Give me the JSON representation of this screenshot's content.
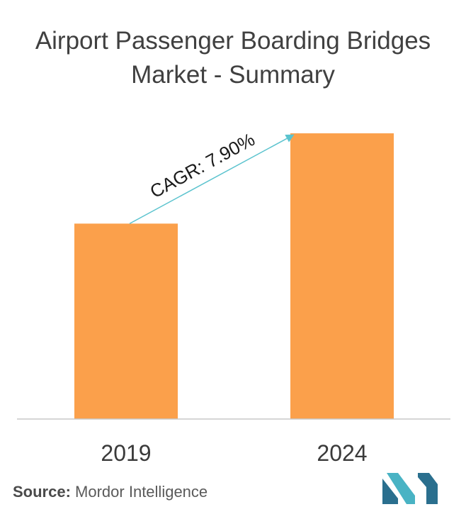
{
  "title": "Airport Passenger Boarding Bridges Market - Summary",
  "source_label": "Source:",
  "source_name": "Mordor Intelligence",
  "chart_data": {
    "type": "bar",
    "categories": [
      "2019",
      "2024"
    ],
    "values": [
      1.0,
      1.462
    ],
    "annotation": "CAGR: 7.90%",
    "bar_color": "#FBA04B",
    "arrow_color": "#5BC3CE",
    "axis_color": "#C8C8C8",
    "grid": false,
    "ylim": [
      0,
      1.6
    ]
  },
  "logo": {
    "name": "mordor-intelligence-logo",
    "colors": [
      "#2A6F8E",
      "#49B3C4"
    ]
  }
}
